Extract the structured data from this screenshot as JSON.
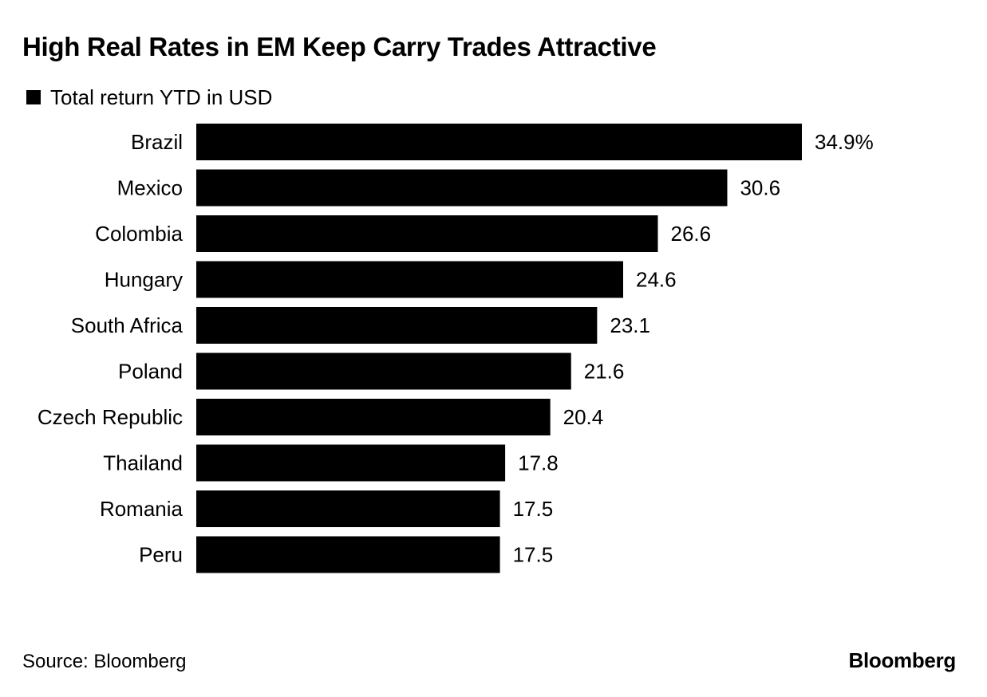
{
  "colors": {
    "bar": "#000000",
    "text": "#000000",
    "background": "#ffffff"
  },
  "chart_data": {
    "type": "bar",
    "orientation": "horizontal",
    "title": "High Real Rates in EM Keep Carry Trades Attractive",
    "categories": [
      "Brazil",
      "Mexico",
      "Colombia",
      "Hungary",
      "South Africa",
      "Poland",
      "Czech Republic",
      "Thailand",
      "Romania",
      "Peru"
    ],
    "series": [
      {
        "name": "Total return YTD in USD",
        "values": [
          34.9,
          30.6,
          26.6,
          24.6,
          23.1,
          21.6,
          20.4,
          17.8,
          17.5,
          17.5
        ]
      }
    ],
    "value_labels": [
      "34.9%",
      "30.6",
      "26.6",
      "24.6",
      "23.1",
      "21.6",
      "20.4",
      "17.8",
      "17.5",
      "17.5"
    ],
    "xlim": [
      0,
      34.9
    ],
    "grid": false,
    "legend_position": "top-left",
    "xlabel": "",
    "ylabel": ""
  },
  "footer": {
    "source": "Source: Bloomberg",
    "brand": "Bloomberg"
  }
}
